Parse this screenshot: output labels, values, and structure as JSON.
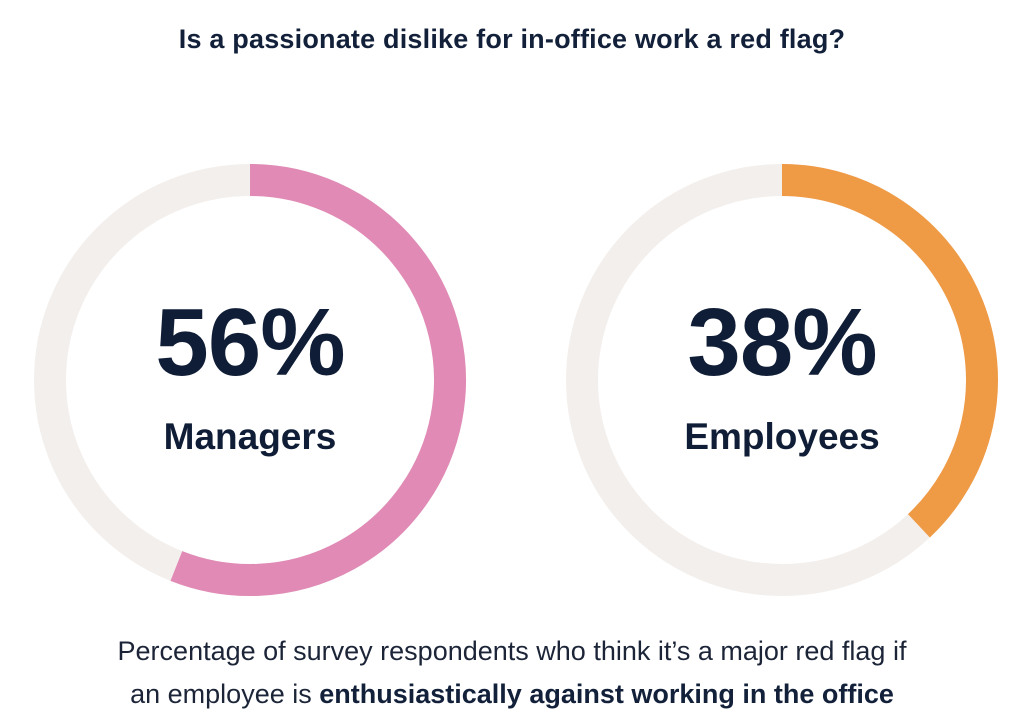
{
  "title": "Is a passionate dislike for in-office work a red flag?",
  "caption": {
    "line1": "Percentage of survey respondents who think it’s a major red flag if",
    "line2_prefix": "an employee is ",
    "line2_bold": "enthusiastically against working in the office"
  },
  "colors": {
    "track": "#f3efed",
    "managers": "#e08ab5",
    "employees": "#ef9a45",
    "text": "#0f1d36"
  },
  "chart_data": [
    {
      "type": "pie",
      "variant": "donut",
      "name": "Managers",
      "value": 56,
      "value_label": "56%",
      "color": "#e08ab5"
    },
    {
      "type": "pie",
      "variant": "donut",
      "name": "Employees",
      "value": 38,
      "value_label": "38%",
      "color": "#ef9a45"
    }
  ]
}
